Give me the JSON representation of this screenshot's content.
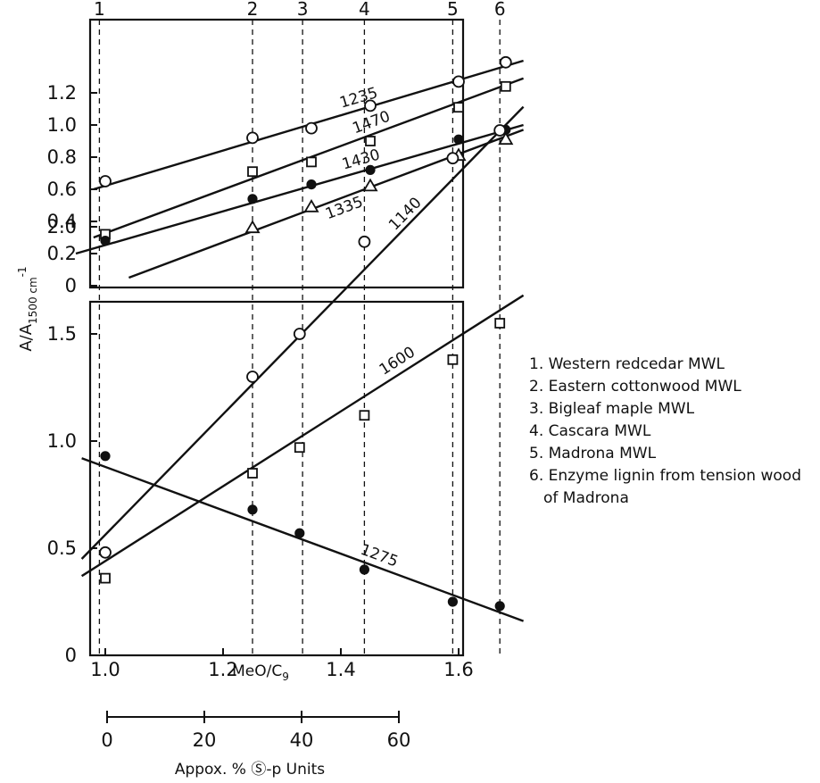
{
  "chart_data": [
    {
      "panel": "top",
      "type": "scatter",
      "ylabel_main": "A/A",
      "ylabel_sub": "1500 cm",
      "ylabel_sup": "-1",
      "ylim": [
        0,
        1.4
      ],
      "yticks": [
        0,
        0.2,
        0.4,
        0.6,
        0.8,
        1.0,
        1.2
      ],
      "ytick_labels": [
        "0",
        "0.2",
        "0.4",
        "0.6",
        "0.8",
        "1.0",
        "1.2"
      ],
      "xlim": [
        0.95,
        1.72
      ],
      "series": [
        {
          "name": "1235",
          "marker": "circle-open",
          "x": [
            1.0,
            1.25,
            1.35,
            1.45,
            1.6,
            1.68
          ],
          "y": [
            0.65,
            0.92,
            0.98,
            1.12,
            1.27,
            1.39
          ],
          "fit": {
            "x": [
              0.98,
              1.71
            ],
            "y": [
              0.6,
              1.4
            ]
          }
        },
        {
          "name": "1470",
          "marker": "square-open",
          "x": [
            1.0,
            1.25,
            1.35,
            1.45,
            1.6,
            1.68
          ],
          "y": [
            0.32,
            0.71,
            0.77,
            0.9,
            1.11,
            1.24
          ],
          "fit": {
            "x": [
              0.98,
              1.71
            ],
            "y": [
              0.3,
              1.29
            ]
          }
        },
        {
          "name": "1430",
          "marker": "circle-solid",
          "x": [
            1.0,
            1.25,
            1.35,
            1.45,
            1.6,
            1.68
          ],
          "y": [
            0.28,
            0.54,
            0.63,
            0.72,
            0.91,
            0.97
          ],
          "fit": {
            "x": [
              0.95,
              1.71
            ],
            "y": [
              0.2,
              1.0
            ]
          }
        },
        {
          "name": "1335",
          "marker": "triangle-open",
          "x": [
            1.25,
            1.35,
            1.45,
            1.6,
            1.68
          ],
          "y": [
            0.36,
            0.49,
            0.62,
            0.81,
            0.91
          ],
          "fit": {
            "x": [
              1.04,
              1.71
            ],
            "y": [
              0.05,
              0.97
            ]
          }
        }
      ]
    },
    {
      "panel": "bottom",
      "type": "scatter",
      "xlabel_main": "MeO/C",
      "xlabel_sub": "9",
      "ylim": [
        0,
        2.6
      ],
      "yticks": [
        0,
        0.5,
        1.0,
        1.5,
        2.0
      ],
      "ytick_labels": [
        "0",
        "0.5",
        "1.0",
        "1.5",
        "2.0"
      ],
      "xlim": [
        0.95,
        1.72
      ],
      "xticks": [
        1.0,
        1.2,
        1.4,
        1.6
      ],
      "xtick_labels": [
        "1.0",
        "1.2",
        "1.4",
        "1.6"
      ],
      "series": [
        {
          "name": "1140",
          "marker": "circle-open",
          "x": [
            1.0,
            1.25,
            1.33,
            1.44,
            1.59,
            1.67
          ],
          "y": [
            0.48,
            1.3,
            1.5,
            1.93,
            2.32,
            2.45
          ],
          "fit": {
            "x": [
              0.96,
              1.71
            ],
            "y": [
              0.45,
              2.56
            ]
          }
        },
        {
          "name": "1600",
          "marker": "square-open",
          "x": [
            1.0,
            1.25,
            1.33,
            1.44,
            1.59,
            1.67
          ],
          "y": [
            0.36,
            0.85,
            0.97,
            1.12,
            1.38,
            1.55
          ],
          "fit": {
            "x": [
              0.96,
              1.71
            ],
            "y": [
              0.37,
              1.68
            ]
          }
        },
        {
          "name": "1275",
          "marker": "circle-solid",
          "x": [
            1.0,
            1.25,
            1.33,
            1.44,
            1.59,
            1.67
          ],
          "y": [
            0.93,
            0.68,
            0.57,
            0.4,
            0.25,
            0.23
          ],
          "fit": {
            "x": [
              0.96,
              1.71
            ],
            "y": [
              0.92,
              0.16
            ]
          }
        }
      ]
    }
  ],
  "sample_columns": {
    "labels": [
      "1",
      "2",
      "3",
      "4",
      "5",
      "6"
    ],
    "meo_c9": [
      0.99,
      1.25,
      1.335,
      1.44,
      1.59,
      1.67
    ]
  },
  "percent_axis": {
    "label": "Appox. % Ⓢ-p Units",
    "ticks": [
      0,
      20,
      40,
      60
    ],
    "tick_labels": [
      "0",
      "20",
      "40",
      "60"
    ]
  },
  "legend": [
    "1. Western redcedar MWL",
    "2. Eastern cottonwood MWL",
    "3. Bigleaf maple MWL",
    "4. Cascara MWL",
    "5. Madrona MWL",
    "6. Enzyme lignin from tension wood of Madrona"
  ]
}
